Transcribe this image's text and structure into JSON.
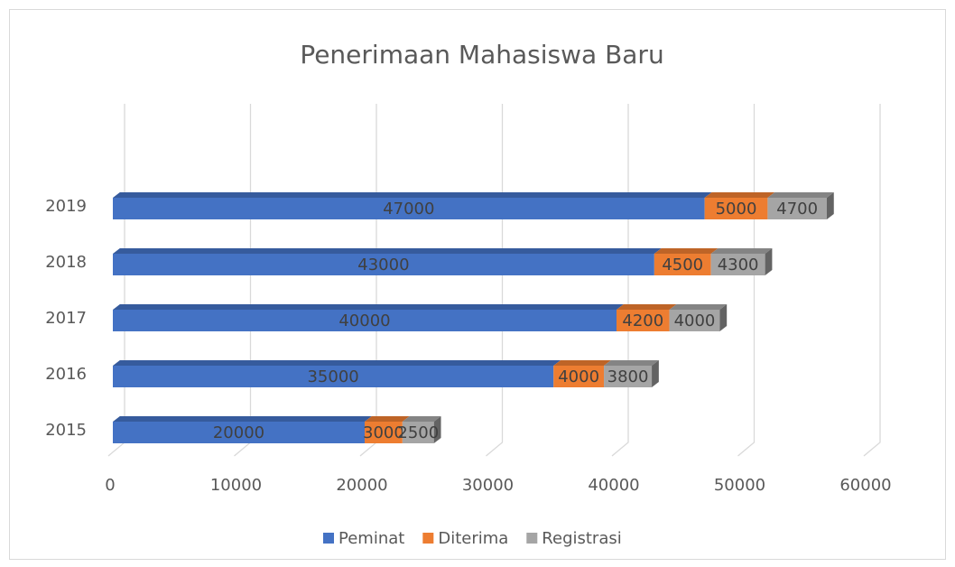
{
  "chart_data": {
    "type": "bar3d",
    "orientation": "horizontal",
    "stacked": true,
    "title": "Penerimaan Mahasiswa Baru",
    "categories": [
      "2015",
      "2016",
      "2017",
      "2018",
      "2019"
    ],
    "series": [
      {
        "name": "Peminat",
        "color": "#4472c4",
        "values": [
          20000,
          35000,
          40000,
          43000,
          47000
        ]
      },
      {
        "name": "Diterima",
        "color": "#ed7d31",
        "values": [
          3000,
          4000,
          4200,
          4500,
          5000
        ]
      },
      {
        "name": "Registrasi",
        "color": "#a5a5a5",
        "values": [
          2500,
          3800,
          4000,
          4300,
          4700
        ]
      }
    ],
    "xlim": [
      0,
      60000
    ],
    "xticks": [
      0,
      10000,
      20000,
      30000,
      40000,
      50000,
      60000
    ],
    "grid": true,
    "legend": "bottom"
  }
}
